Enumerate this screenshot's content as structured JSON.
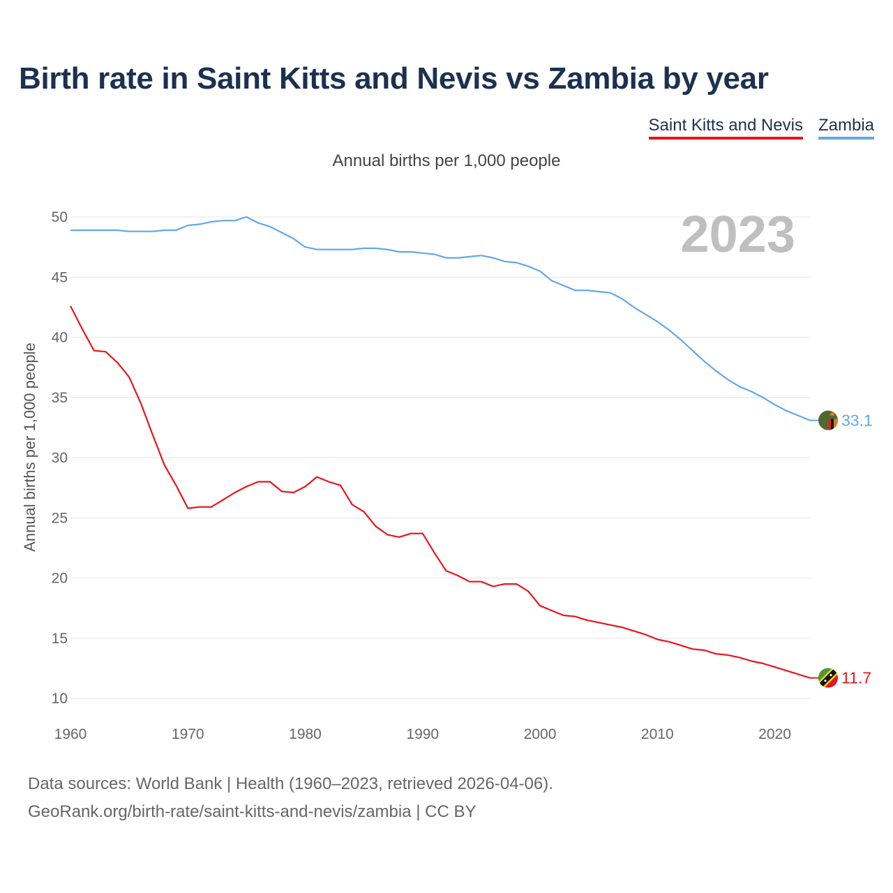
{
  "title": "Birth rate in Saint Kitts and Nevis vs Zambia by year",
  "subtitle": "Annual births per 1,000 people",
  "legend": [
    "Saint Kitts and Nevis",
    "Zambia"
  ],
  "footer": {
    "line1": "Data sources: World Bank | Health (1960–2023, retrieved 2026-04-06).",
    "line2": "GeoRank.org/birth-rate/saint-kitts-and-nevis/zambia | CC BY"
  },
  "colors": {
    "skn": "#e8141b",
    "zmb": "#62a8e8",
    "title": "#1c3150"
  },
  "chart_data": {
    "type": "line",
    "title": "Birth rate in Saint Kitts and Nevis vs Zambia by year",
    "subtitle": "Annual births per 1,000 people",
    "xlabel": "",
    "ylabel": "Annual births per 1,000 people",
    "xlim": [
      1960,
      2023
    ],
    "ylim": [
      10,
      50
    ],
    "x_ticks": [
      1960,
      1970,
      1980,
      1990,
      2000,
      2010,
      2020
    ],
    "y_ticks": [
      10,
      15,
      20,
      25,
      30,
      35,
      40,
      45,
      50
    ],
    "highlight_year": "2023",
    "grid": true,
    "legend_position": "top-right",
    "series": [
      {
        "name": "Saint Kitts and Nevis",
        "color": "#e8141b",
        "end_label": "11.7",
        "x": [
          1960,
          1961,
          1962,
          1963,
          1964,
          1965,
          1966,
          1967,
          1968,
          1969,
          1970,
          1971,
          1972,
          1973,
          1974,
          1975,
          1976,
          1977,
          1978,
          1979,
          1980,
          1981,
          1982,
          1983,
          1984,
          1985,
          1986,
          1987,
          1988,
          1989,
          1990,
          1991,
          1992,
          1993,
          1994,
          1995,
          1996,
          1997,
          1998,
          1999,
          2000,
          2001,
          2002,
          2003,
          2004,
          2005,
          2006,
          2007,
          2008,
          2009,
          2010,
          2011,
          2012,
          2013,
          2014,
          2015,
          2016,
          2017,
          2018,
          2019,
          2020,
          2021,
          2022,
          2023
        ],
        "values": [
          42.6,
          40.7,
          38.9,
          38.8,
          37.9,
          36.7,
          34.5,
          31.9,
          29.4,
          27.7,
          25.8,
          25.9,
          25.9,
          26.5,
          27.1,
          27.6,
          28.0,
          28.0,
          27.2,
          27.1,
          27.6,
          28.4,
          28.0,
          27.7,
          26.1,
          25.5,
          24.3,
          23.6,
          23.4,
          23.7,
          23.7,
          22.1,
          20.6,
          20.2,
          19.7,
          19.7,
          19.3,
          19.5,
          19.5,
          18.9,
          17.7,
          17.3,
          16.9,
          16.8,
          16.5,
          16.3,
          16.1,
          15.9,
          15.6,
          15.3,
          14.9,
          14.7,
          14.4,
          14.1,
          14.0,
          13.7,
          13.6,
          13.4,
          13.1,
          12.9,
          12.6,
          12.3,
          12.0,
          11.7
        ]
      },
      {
        "name": "Zambia",
        "color": "#62a8e8",
        "end_label": "33.1",
        "x": [
          1960,
          1961,
          1962,
          1963,
          1964,
          1965,
          1966,
          1967,
          1968,
          1969,
          1970,
          1971,
          1972,
          1973,
          1974,
          1975,
          1976,
          1977,
          1978,
          1979,
          1980,
          1981,
          1982,
          1983,
          1984,
          1985,
          1986,
          1987,
          1988,
          1989,
          1990,
          1991,
          1992,
          1993,
          1994,
          1995,
          1996,
          1997,
          1998,
          1999,
          2000,
          2001,
          2002,
          2003,
          2004,
          2005,
          2006,
          2007,
          2008,
          2009,
          2010,
          2011,
          2012,
          2013,
          2014,
          2015,
          2016,
          2017,
          2018,
          2019,
          2020,
          2021,
          2022,
          2023
        ],
        "values": [
          48.9,
          48.9,
          48.9,
          48.9,
          48.9,
          48.8,
          48.8,
          48.8,
          48.9,
          48.9,
          49.3,
          49.4,
          49.6,
          49.7,
          49.7,
          50.0,
          49.5,
          49.2,
          48.7,
          48.2,
          47.5,
          47.3,
          47.3,
          47.3,
          47.3,
          47.4,
          47.4,
          47.3,
          47.1,
          47.1,
          47.0,
          46.9,
          46.6,
          46.6,
          46.7,
          46.8,
          46.6,
          46.3,
          46.2,
          45.9,
          45.5,
          44.7,
          44.3,
          43.9,
          43.9,
          43.8,
          43.7,
          43.2,
          42.5,
          41.9,
          41.3,
          40.6,
          39.8,
          38.9,
          38.0,
          37.2,
          36.5,
          35.9,
          35.5,
          35.0,
          34.4,
          33.9,
          33.5,
          33.1
        ]
      }
    ]
  }
}
